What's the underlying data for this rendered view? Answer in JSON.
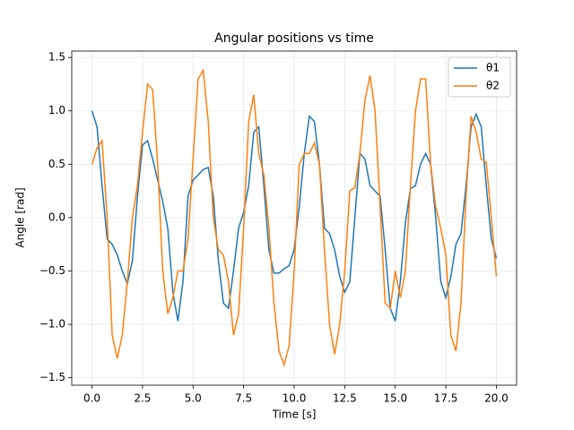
{
  "chart_data": {
    "type": "line",
    "title": "Angular positions vs time",
    "x_label": "Time [s]",
    "y_label": "Angle [rad]",
    "x": [
      0,
      0.25,
      0.5,
      0.75,
      1,
      1.25,
      1.5,
      1.75,
      2,
      2.25,
      2.5,
      2.75,
      3,
      3.25,
      3.5,
      3.75,
      4,
      4.25,
      4.5,
      4.75,
      5,
      5.25,
      5.5,
      5.75,
      6,
      6.25,
      6.5,
      6.75,
      7,
      7.25,
      7.5,
      7.75,
      8,
      8.25,
      8.5,
      8.75,
      9,
      9.25,
      9.5,
      9.75,
      10,
      10.25,
      10.5,
      10.75,
      11,
      11.25,
      11.5,
      11.75,
      12,
      12.25,
      12.5,
      12.75,
      13,
      13.25,
      13.5,
      13.75,
      14,
      14.25,
      14.5,
      14.75,
      15,
      15.25,
      15.5,
      15.75,
      16,
      16.25,
      16.5,
      16.75,
      17,
      17.25,
      17.5,
      17.75,
      18,
      18.25,
      18.5,
      18.75,
      19,
      19.25,
      19.5,
      19.75,
      20
    ],
    "series": [
      {
        "name": "θ1",
        "color": "#1f77b4",
        "values": [
          1.0,
          0.85,
          0.3,
          -0.2,
          -0.25,
          -0.35,
          -0.5,
          -0.62,
          -0.4,
          0.2,
          0.68,
          0.72,
          0.55,
          0.35,
          0.15,
          -0.1,
          -0.7,
          -0.97,
          -0.6,
          0.2,
          0.35,
          0.4,
          0.45,
          0.47,
          0.2,
          -0.4,
          -0.8,
          -0.85,
          -0.5,
          -0.1,
          0.05,
          0.3,
          0.8,
          0.85,
          0.3,
          -0.3,
          -0.52,
          -0.52,
          -0.48,
          -0.45,
          -0.3,
          0.1,
          0.6,
          0.95,
          0.9,
          0.5,
          -0.1,
          -0.15,
          -0.3,
          -0.55,
          -0.7,
          -0.6,
          0.0,
          0.6,
          0.55,
          0.3,
          0.25,
          0.2,
          -0.3,
          -0.85,
          -0.97,
          -0.6,
          -0.05,
          0.27,
          0.3,
          0.5,
          0.6,
          0.5,
          0.0,
          -0.6,
          -0.75,
          -0.55,
          -0.25,
          -0.15,
          0.3,
          0.85,
          0.97,
          0.85,
          0.3,
          -0.2,
          -0.38
        ]
      },
      {
        "name": "θ2",
        "color": "#ff7f0e",
        "values": [
          0.5,
          0.65,
          0.72,
          0.0,
          -1.1,
          -1.32,
          -1.1,
          -0.6,
          0.0,
          0.3,
          0.8,
          1.25,
          1.2,
          0.5,
          -0.5,
          -0.9,
          -0.75,
          -0.5,
          -0.5,
          -0.2,
          0.55,
          1.3,
          1.38,
          0.9,
          0.0,
          -0.3,
          -0.35,
          -0.6,
          -1.1,
          -0.9,
          -0.1,
          0.9,
          1.15,
          0.6,
          0.4,
          -0.1,
          -0.8,
          -1.25,
          -1.38,
          -1.2,
          -0.5,
          0.5,
          0.6,
          0.6,
          0.7,
          0.5,
          -0.3,
          -1.0,
          -1.28,
          -1.0,
          -0.5,
          0.25,
          0.28,
          0.6,
          1.1,
          1.33,
          1.0,
          0.1,
          -0.8,
          -0.85,
          -0.5,
          -0.75,
          -0.5,
          0.3,
          1.0,
          1.3,
          1.3,
          0.5,
          0.1,
          -0.1,
          -0.35,
          -1.1,
          -1.25,
          -0.8,
          0.2,
          0.95,
          0.8,
          0.55,
          0.52,
          0.0,
          -0.55
        ]
      }
    ],
    "xlim": [
      -1,
      21
    ],
    "ylim": [
      -1.57,
      1.56
    ],
    "xticks": [
      {
        "value": 0,
        "label": "0.0"
      },
      {
        "value": 2.5,
        "label": "2.5"
      },
      {
        "value": 5,
        "label": "5.0"
      },
      {
        "value": 7.5,
        "label": "7.5"
      },
      {
        "value": 10,
        "label": "10.0"
      },
      {
        "value": 12.5,
        "label": "12.5"
      },
      {
        "value": 15,
        "label": "15.0"
      },
      {
        "value": 17.5,
        "label": "17.5"
      },
      {
        "value": 20,
        "label": "20.0"
      }
    ],
    "yticks": [
      {
        "value": -1.5,
        "label": "−1.5"
      },
      {
        "value": -1,
        "label": "−1.0"
      },
      {
        "value": -0.5,
        "label": "−0.5"
      },
      {
        "value": 0,
        "label": "0.0"
      },
      {
        "value": 0.5,
        "label": "0.5"
      },
      {
        "value": 1,
        "label": "1.0"
      },
      {
        "value": 1.5,
        "label": "1.5"
      }
    ],
    "grid": true,
    "legend": "upper right"
  }
}
